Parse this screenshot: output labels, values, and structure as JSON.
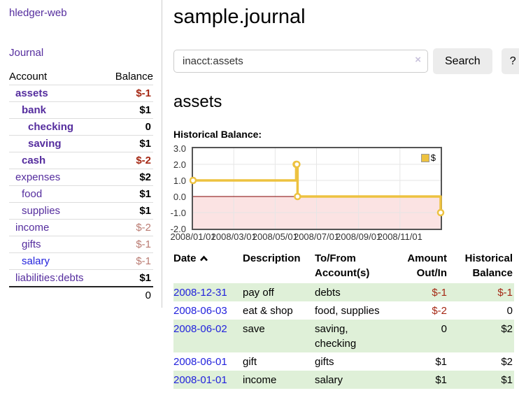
{
  "sidebar": {
    "brand": "hledger-web",
    "nav": {
      "journal": "Journal"
    },
    "accounts_table": {
      "headers": {
        "account": "Account",
        "balance": "Balance"
      },
      "rows": [
        {
          "name": "assets",
          "depth": 1,
          "bold": true,
          "blue": false,
          "balance": "$-1",
          "balance_style": "neg-strong"
        },
        {
          "name": "bank",
          "depth": 2,
          "bold": true,
          "blue": false,
          "balance": "$1",
          "balance_style": "normal"
        },
        {
          "name": "checking",
          "depth": 3,
          "bold": true,
          "blue": false,
          "balance": "0",
          "balance_style": "normal"
        },
        {
          "name": "saving",
          "depth": 3,
          "bold": true,
          "blue": false,
          "balance": "$1",
          "balance_style": "normal"
        },
        {
          "name": "cash",
          "depth": 2,
          "bold": true,
          "blue": false,
          "balance": "$-2",
          "balance_style": "neg-strong"
        },
        {
          "name": "expenses",
          "depth": 1,
          "bold": false,
          "blue": false,
          "balance": "$2",
          "balance_style": "normal"
        },
        {
          "name": "food",
          "depth": 2,
          "bold": false,
          "blue": false,
          "balance": "$1",
          "balance_style": "normal"
        },
        {
          "name": "supplies",
          "depth": 2,
          "bold": false,
          "blue": false,
          "balance": "$1",
          "balance_style": "normal"
        },
        {
          "name": "income",
          "depth": 1,
          "bold": false,
          "blue": false,
          "balance": "$-2",
          "balance_style": "neg-muted"
        },
        {
          "name": "gifts",
          "depth": 2,
          "bold": false,
          "blue": false,
          "balance": "$-1",
          "balance_style": "neg-muted"
        },
        {
          "name": "salary",
          "depth": 2,
          "bold": false,
          "blue": true,
          "balance": "$-1",
          "balance_style": "neg-muted"
        },
        {
          "name": "liabilities:debts",
          "depth": 1,
          "bold": false,
          "blue": false,
          "balance": "$1",
          "balance_style": "normal"
        }
      ],
      "total": "0"
    }
  },
  "main": {
    "title": "sample.journal",
    "search": {
      "value": "inacct:assets",
      "clear_icon": "×",
      "search_button": "Search",
      "help_button": "?"
    },
    "account_heading": "assets",
    "chart_heading": "Historical Balance:"
  },
  "chart_data": {
    "type": "line",
    "title": "Historical Balance:",
    "step": true,
    "series": [
      {
        "name": "$",
        "color": "#edc240",
        "points": [
          [
            "2008-01-01",
            1.0
          ],
          [
            "2008-06-01",
            2.0
          ],
          [
            "2008-06-02",
            2.0
          ],
          [
            "2008-06-03",
            0.0
          ],
          [
            "2008-12-31",
            -1.0
          ]
        ]
      }
    ],
    "x_range": [
      "2008-01-01",
      "2008-12-31"
    ],
    "ylim": [
      -2.0,
      3.0
    ],
    "yticks": [
      3.0,
      2.0,
      1.0,
      0.0,
      -1.0,
      -2.0
    ],
    "xticks": [
      "2008/01/01",
      "2008/03/01",
      "2008/05/01",
      "2008/07/01",
      "2008/09/01",
      "2008/11/01"
    ],
    "grid": true,
    "legend_position": "top-right",
    "zero_line_color": "#800000",
    "negative_region_color": "#fbe3e3"
  },
  "register": {
    "columns": [
      "Date",
      "Description",
      "To/From Account(s)",
      "Amount Out/In",
      "Historical Balance"
    ],
    "rows": [
      {
        "date": "2008-12-31",
        "description": "pay off",
        "accounts": "debts",
        "amount": "$-1",
        "amount_negative": true,
        "balance": "$-1",
        "balance_negative": true
      },
      {
        "date": "2008-06-03",
        "description": "eat & shop",
        "accounts": "food, supplies",
        "amount": "$-2",
        "amount_negative": true,
        "balance": "0",
        "balance_negative": false
      },
      {
        "date": "2008-06-02",
        "description": "save",
        "accounts": "saving, checking",
        "amount": "0",
        "amount_negative": false,
        "balance": "$2",
        "balance_negative": false
      },
      {
        "date": "2008-06-01",
        "description": "gift",
        "accounts": "gifts",
        "amount": "$1",
        "amount_negative": false,
        "balance": "$2",
        "balance_negative": false
      },
      {
        "date": "2008-01-01",
        "description": "income",
        "accounts": "salary",
        "amount": "$1",
        "amount_negative": false,
        "balance": "$1",
        "balance_negative": false
      }
    ]
  }
}
